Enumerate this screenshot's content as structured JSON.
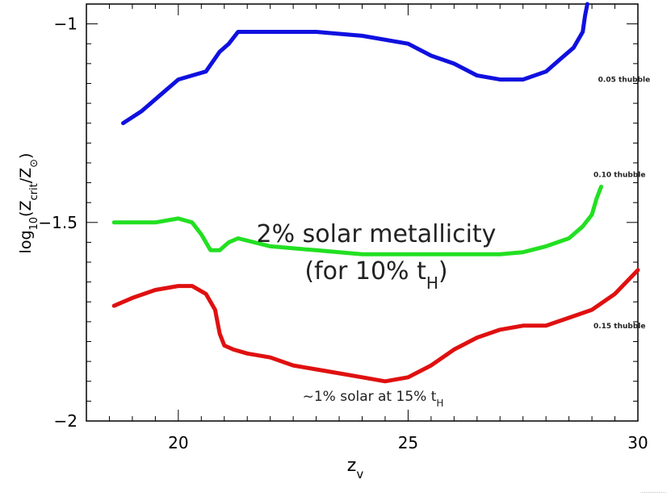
{
  "chart_data": {
    "type": "line",
    "xlabel": "z_v",
    "ylabel": "log10(Zcrit/Z⊙)",
    "xlim": [
      18,
      30
    ],
    "ylim": [
      -2.0,
      -0.95
    ],
    "xticks": [
      20,
      25,
      30
    ],
    "xtick_labels": [
      "20",
      "25",
      "30"
    ],
    "yticks": [
      -1,
      -1.5,
      -2
    ],
    "ytick_labels": [
      "−1",
      "−1.5",
      "−2"
    ],
    "grid": false,
    "legend": "none",
    "series": [
      {
        "name": "0.05 thubble",
        "color": "#1010e0",
        "x": [
          18.8,
          19.2,
          19.6,
          20.0,
          20.3,
          20.6,
          20.9,
          21.1,
          21.3,
          21.5,
          22.0,
          23.0,
          24.0,
          25.0,
          25.5,
          26.0,
          26.5,
          27.0,
          27.5,
          28.0,
          28.3,
          28.6,
          28.8,
          28.85,
          28.9
        ],
        "y": [
          -1.25,
          -1.22,
          -1.18,
          -1.14,
          -1.13,
          -1.12,
          -1.07,
          -1.05,
          -1.02,
          -1.02,
          -1.02,
          -1.02,
          -1.03,
          -1.05,
          -1.08,
          -1.1,
          -1.13,
          -1.14,
          -1.14,
          -1.12,
          -1.09,
          -1.06,
          -1.02,
          -0.98,
          -0.95
        ]
      },
      {
        "name": "0.10 thubble",
        "color": "#22e022",
        "x": [
          18.6,
          19.0,
          19.5,
          20.0,
          20.3,
          20.5,
          20.7,
          20.9,
          21.1,
          21.3,
          22.0,
          23.0,
          24.0,
          25.0,
          26.0,
          27.0,
          27.5,
          28.0,
          28.5,
          28.8,
          29.0,
          29.1,
          29.2
        ],
        "y": [
          -1.5,
          -1.5,
          -1.5,
          -1.49,
          -1.5,
          -1.53,
          -1.57,
          -1.57,
          -1.55,
          -1.54,
          -1.56,
          -1.57,
          -1.58,
          -1.58,
          -1.58,
          -1.58,
          -1.575,
          -1.56,
          -1.54,
          -1.51,
          -1.48,
          -1.44,
          -1.41
        ]
      },
      {
        "name": "0.15 thubble",
        "color": "#e01010",
        "x": [
          18.6,
          19.0,
          19.5,
          20.0,
          20.3,
          20.6,
          20.8,
          20.9,
          21.0,
          21.2,
          21.5,
          22.0,
          22.5,
          23.0,
          23.5,
          24.0,
          24.5,
          25.0,
          25.5,
          26.0,
          26.5,
          27.0,
          27.5,
          28.0,
          28.5,
          29.0,
          29.5,
          30.0
        ],
        "y": [
          -1.71,
          -1.69,
          -1.67,
          -1.66,
          -1.66,
          -1.68,
          -1.72,
          -1.78,
          -1.81,
          -1.82,
          -1.83,
          -1.84,
          -1.86,
          -1.87,
          -1.88,
          -1.89,
          -1.9,
          -1.89,
          -1.86,
          -1.82,
          -1.79,
          -1.77,
          -1.76,
          -1.76,
          -1.74,
          -1.72,
          -1.68,
          -1.62
        ]
      }
    ],
    "annotations": [
      {
        "text": "0.05 thubble",
        "x": 29.7,
        "y": -1.14
      },
      {
        "text": "0.10 thubble",
        "x": 29.6,
        "y": -1.38
      },
      {
        "text": "0.15 thubble",
        "x": 29.6,
        "y": -1.76
      }
    ],
    "overlay_text": {
      "line1": "2% solar metallicity",
      "line2": "(for 10% t",
      "line2_sub": "H",
      "line2_end": ")",
      "bottom": "~1% solar at 15% t",
      "bottom_sub": "H"
    },
    "footer": "...................."
  }
}
